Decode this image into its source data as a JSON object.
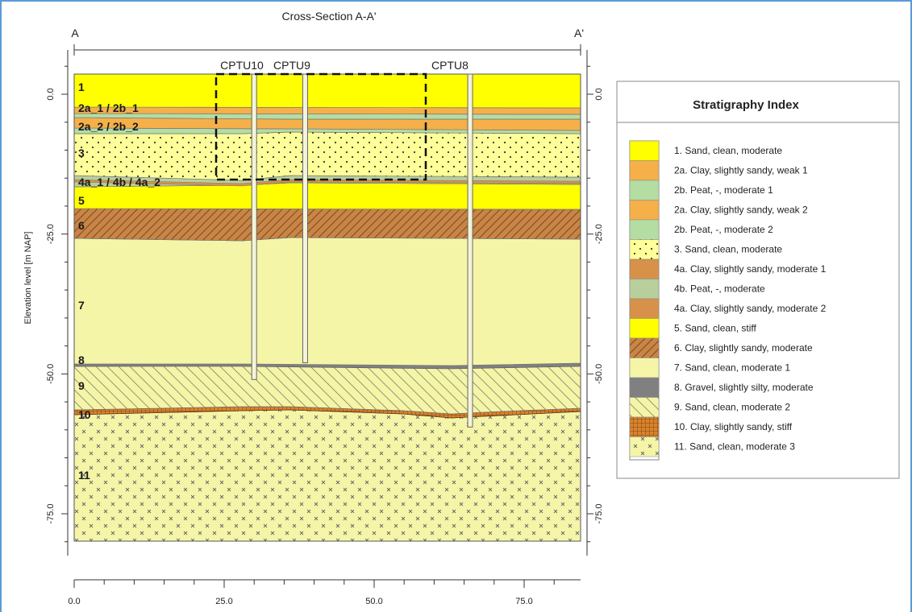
{
  "title": "Cross-Section A-A'",
  "section_start": "A",
  "section_end": "A'",
  "y_axis_label": "Elevation level [m NAP]",
  "y_ticks": [
    "0.0",
    "-25.0",
    "-50.0",
    "-75.0"
  ],
  "x_ticks": [
    "0.0",
    "25.0",
    "50.0",
    "75.0"
  ],
  "cpts": [
    {
      "label": "CPTU10",
      "x": 30,
      "bottom": -51
    },
    {
      "label": "CPTU9",
      "x": 38.5,
      "bottom": -48
    },
    {
      "label": "CPTU8",
      "x": 66,
      "bottom": -59.5
    }
  ],
  "layer_labels": [
    "1",
    "2a_1 / 2b_1",
    "2a_2 / 2b_2",
    "3",
    "4a_1 / 4b / 4a_2",
    "5",
    "6",
    "7",
    "8",
    "9",
    "10",
    "11"
  ],
  "legend": {
    "title": "Stratigraphy Index",
    "items": [
      {
        "label": "1. Sand, clean, moderate",
        "color": "#ffff00",
        "pattern": "solid"
      },
      {
        "label": "2a. Clay, slightly sandy, weak 1",
        "color": "#f5b04a",
        "pattern": "solid"
      },
      {
        "label": "2b. Peat, -, moderate 1",
        "color": "#b4dda4",
        "pattern": "solid"
      },
      {
        "label": "2a. Clay, slightly sandy, weak 2",
        "color": "#f5b04a",
        "pattern": "solid"
      },
      {
        "label": "2b. Peat, -, moderate 2",
        "color": "#b4dda4",
        "pattern": "solid"
      },
      {
        "label": "3. Sand, clean, moderate",
        "color": "#ffff99",
        "pattern": "dots"
      },
      {
        "label": "4a. Clay, slightly sandy, moderate 1",
        "color": "#d7914a",
        "pattern": "solid"
      },
      {
        "label": "4b. Peat, -, moderate",
        "color": "#b8cf9c",
        "pattern": "solid"
      },
      {
        "label": "4a. Clay, slightly sandy, moderate 2",
        "color": "#d7914a",
        "pattern": "solid"
      },
      {
        "label": "5. Sand, clean, stiff",
        "color": "#ffff00",
        "pattern": "solid"
      },
      {
        "label": "6. Clay, slightly sandy, moderate",
        "color": "#c98546",
        "pattern": "hatch"
      },
      {
        "label": "7. Sand, clean, moderate 1",
        "color": "#f5f5a8",
        "pattern": "solid"
      },
      {
        "label": "8. Gravel, slightly silty, moderate",
        "color": "#808080",
        "pattern": "solid"
      },
      {
        "label": "9. Sand, clean, moderate 2",
        "color": "#f5f5a8",
        "pattern": "backhatch"
      },
      {
        "label": "10. Clay, slightly sandy, stiff",
        "color": "#d9822b",
        "pattern": "grid"
      },
      {
        "label": "11. Sand, clean, moderate 3",
        "color": "#f5f5a8",
        "pattern": "cross"
      }
    ]
  }
}
